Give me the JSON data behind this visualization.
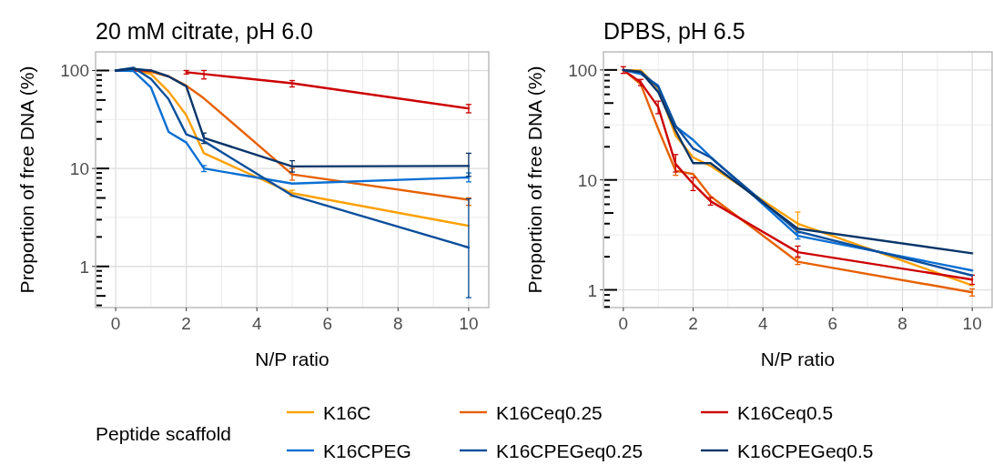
{
  "chart_data": [
    {
      "type": "line",
      "title": "20 mM citrate, pH 6.0",
      "xlabel": "N/P ratio",
      "ylabel": "Proportion of free DNA (%)",
      "legend_title": "Peptide scaffold",
      "legend": "bottom",
      "log": "y",
      "grid": true,
      "x": [
        0,
        0.5,
        1,
        1.5,
        2,
        2.5,
        5,
        10
      ],
      "xlim": [
        -0.57,
        10.57
      ],
      "xticks": [
        0,
        2,
        4,
        6,
        8,
        10
      ],
      "ylim": [
        0.38,
        155
      ],
      "yticks": [
        {
          "value": 0.4,
          "label": null
        },
        {
          "value": 0.5,
          "label": null
        },
        {
          "value": 0.6,
          "label": null
        },
        {
          "value": 0.7,
          "label": null
        },
        {
          "value": 0.8,
          "label": null
        },
        {
          "value": 0.9,
          "label": null
        },
        1,
        {
          "value": 2,
          "label": null
        },
        {
          "value": 3,
          "label": null
        },
        {
          "value": 4,
          "label": null
        },
        {
          "value": 5,
          "label": null
        },
        {
          "value": 6,
          "label": null
        },
        {
          "value": 7,
          "label": null
        },
        {
          "value": 8,
          "label": null
        },
        {
          "value": 9,
          "label": null
        },
        10,
        {
          "value": 20,
          "label": null
        },
        {
          "value": 30,
          "label": null
        },
        {
          "value": 40,
          "label": null
        },
        {
          "value": 50,
          "label": null
        },
        {
          "value": 60,
          "label": null
        },
        {
          "value": 70,
          "label": null
        },
        {
          "value": 80,
          "label": null
        },
        {
          "value": 90,
          "label": null
        },
        100
      ],
      "series": [
        {
          "name": "K16C",
          "color": "#ffa000",
          "values": [
            100,
            102,
            92,
            61,
            35,
            14.3,
            5.6,
            2.6
          ],
          "errors": [
            null,
            null,
            null,
            null,
            null,
            null,
            0.4,
            null
          ]
        },
        {
          "name": "K16Ceq0.25",
          "color": "#e66100",
          "values": [
            100,
            100,
            97,
            87,
            70,
            52,
            8.7,
            4.8
          ],
          "errors": [
            null,
            null,
            null,
            null,
            null,
            null,
            [
              7.6,
              10
            ],
            [
              4.2,
              5
            ]
          ]
        },
        {
          "name": "K16Ceq0.5",
          "color": "#cc0000",
          "values": [
            100,
            101,
            100,
            null,
            96,
            92,
            74,
            41
          ],
          "errors": [
            null,
            null,
            null,
            null,
            4,
            [
              82,
              100
            ],
            [
              68,
              79
            ],
            [
              37,
              45
            ]
          ]
        },
        {
          "name": "K16CPEG",
          "color": "#0a6fd3",
          "values": [
            100,
            99,
            67,
            23.6,
            18.4,
            10,
            7,
            8.1
          ],
          "errors": [
            null,
            null,
            null,
            null,
            null,
            [
              9.3,
              10.7
            ],
            null,
            [
              7.3,
              9
            ]
          ]
        },
        {
          "name": "K16CPEGeq0.25",
          "color": "#0b4f9c",
          "values": [
            100,
            107,
            82,
            51,
            22.3,
            19,
            5.3,
            1.56
          ],
          "errors": [
            null,
            null,
            null,
            null,
            null,
            null,
            null,
            [
              0.48,
              4.9
            ]
          ]
        },
        {
          "name": "K16CPEGeq0.5",
          "color": "#083569",
          "values": [
            100,
            104,
            100,
            87,
            69,
            20.5,
            10.5,
            10.6
          ],
          "errors": [
            null,
            null,
            null,
            null,
            null,
            [
              18,
              23
            ],
            [
              9.2,
              12
            ],
            [
              8.3,
              14.3
            ]
          ]
        }
      ]
    },
    {
      "type": "line",
      "title": "DPBS, pH 6.5",
      "xlabel": "N/P ratio",
      "ylabel": "Proportion of free DNA (%)",
      "log": "y",
      "grid": true,
      "x": [
        0,
        0.5,
        1,
        1.5,
        2,
        2.5,
        5,
        10
      ],
      "xlim": [
        -0.57,
        10.57
      ],
      "xticks": [
        0,
        2,
        4,
        6,
        8,
        10
      ],
      "ylim": [
        0.69,
        146
      ],
      "yticks": [
        {
          "value": 0.7,
          "label": null
        },
        {
          "value": 0.8,
          "label": null
        },
        {
          "value": 0.9,
          "label": null
        },
        1,
        {
          "value": 2,
          "label": null
        },
        {
          "value": 3,
          "label": null
        },
        {
          "value": 4,
          "label": null
        },
        {
          "value": 5,
          "label": null
        },
        {
          "value": 6,
          "label": null
        },
        {
          "value": 7,
          "label": null
        },
        {
          "value": 8,
          "label": null
        },
        {
          "value": 9,
          "label": null
        },
        10,
        {
          "value": 20,
          "label": null
        },
        {
          "value": 30,
          "label": null
        },
        {
          "value": 40,
          "label": null
        },
        {
          "value": 50,
          "label": null
        },
        {
          "value": 60,
          "label": null
        },
        {
          "value": 70,
          "label": null
        },
        {
          "value": 80,
          "label": null
        },
        {
          "value": 90,
          "label": null
        },
        100
      ],
      "series": [
        {
          "color": "#ffa000",
          "values": [
            100,
            99,
            68,
            25.3,
            16,
            13.4,
            4,
            1.1
          ],
          "errors": [
            null,
            null,
            null,
            null,
            null,
            null,
            [
              3.4,
              5.1
            ],
            null
          ]
        },
        {
          "color": "#e66100",
          "values": [
            100,
            74,
            29,
            12.1,
            11.3,
            7.1,
            1.8,
            0.95
          ],
          "errors": [
            null,
            null,
            null,
            [
              11,
              13.4
            ],
            null,
            null,
            [
              1.7,
              1.95
            ],
            [
              0.88,
              1.02
            ]
          ]
        },
        {
          "color": "#cc0000",
          "values": [
            100,
            77,
            46,
            13.9,
            9.2,
            6.4,
            2.2,
            1.24
          ],
          "errors": [
            [
              93,
              107
            ],
            [
              72,
              82
            ],
            [
              40,
              52
            ],
            [
              11.8,
              17
            ],
            [
              8,
              10.5
            ],
            [
              5.9,
              6.9
            ],
            [
              2,
              2.5
            ],
            [
              1.12,
              1.36
            ]
          ]
        },
        {
          "color": "#0a6fd3",
          "values": [
            100,
            92,
            72,
            30.6,
            23.1,
            16.2,
            3.1,
            1.5
          ],
          "errors": [
            null,
            null,
            null,
            null,
            null,
            null,
            [
              2.9,
              3.3
            ],
            null
          ]
        },
        {
          "color": "#0b4f9c",
          "values": [
            100,
            96,
            70,
            31,
            19.3,
            16,
            3.4,
            1.35
          ]
        },
        {
          "color": "#083569",
          "values": [
            100,
            96,
            63,
            28,
            14.2,
            14.2,
            3.6,
            2.15
          ]
        }
      ]
    }
  ]
}
